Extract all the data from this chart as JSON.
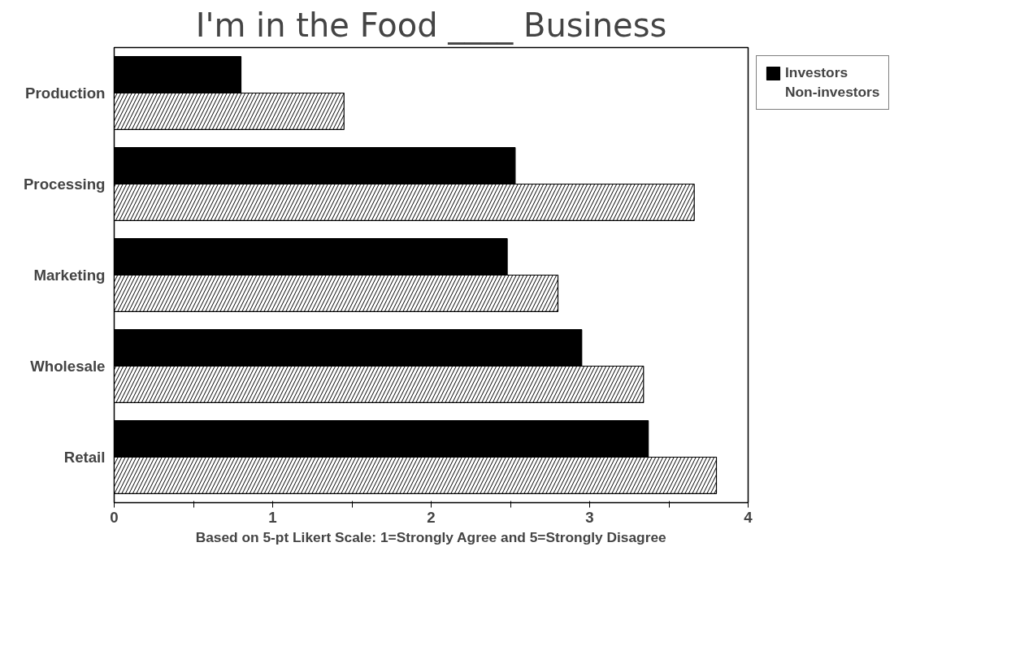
{
  "chart_data": {
    "type": "bar",
    "orientation": "horizontal",
    "title": "I'm in the Food ____ Business",
    "xlabel": "Based on 5-pt Likert Scale: 1=Strongly Agree and 5=Strongly Disagree",
    "categories": [
      "Production",
      "Processing",
      "Marketing",
      "Wholesale",
      "Retail"
    ],
    "series": [
      {
        "name": "Investors",
        "color": "#000000",
        "values": [
          0.8,
          2.53,
          2.48,
          2.95,
          3.37
        ]
      },
      {
        "name": "Non-investors",
        "color": "#ffffff",
        "values": [
          1.45,
          3.66,
          2.8,
          3.34,
          3.8
        ]
      }
    ],
    "xlim": [
      0,
      4
    ],
    "xticks": [
      0,
      {
        "value": 0.5,
        "label": null
      },
      1,
      {
        "value": 1.5,
        "label": null
      },
      2,
      {
        "value": 2.5,
        "label": null
      },
      3,
      {
        "value": 3.5,
        "label": null
      },
      4
    ],
    "grid": false,
    "legend": "top right"
  }
}
